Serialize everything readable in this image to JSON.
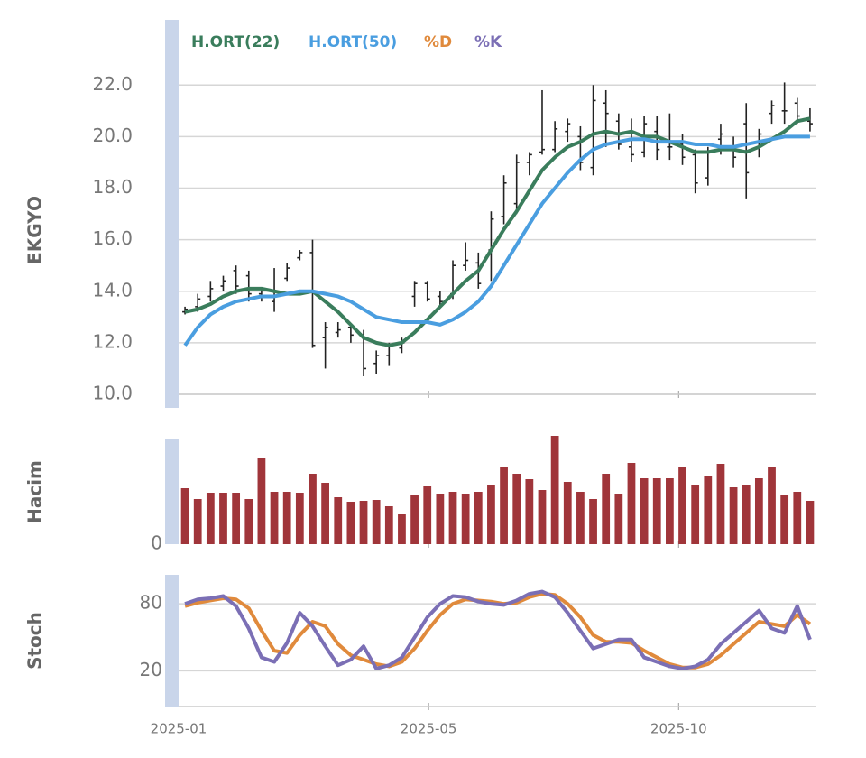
{
  "chart_data": [
    {
      "type": "ohlc",
      "ylabel": "EKGYO",
      "x": [
        0,
        1,
        2,
        3,
        4,
        5,
        6,
        7,
        8,
        9,
        10,
        11,
        12,
        13,
        14,
        15,
        16,
        17,
        18,
        19,
        20,
        21,
        22,
        23,
        24,
        25,
        26,
        27,
        28,
        29,
        30,
        31,
        32,
        33,
        34,
        35,
        36,
        37,
        38,
        39,
        40,
        41,
        42,
        43,
        44,
        45,
        46,
        47,
        48,
        49
      ],
      "open": [
        13.2,
        13.4,
        13.8,
        14.2,
        14.8,
        14.6,
        13.9,
        13.6,
        14.5,
        15.3,
        15.5,
        12.2,
        12.4,
        12.6,
        12.3,
        11.2,
        11.5,
        11.8,
        13.8,
        14.3,
        13.8,
        13.9,
        15.0,
        15.1,
        15.6,
        16.9,
        17.4,
        19.0,
        19.4,
        19.5,
        20.2,
        20.0,
        18.8,
        21.3,
        20.6,
        19.6,
        19.4,
        20.2,
        19.6,
        19.7,
        19.3,
        18.4,
        19.9,
        19.6,
        20.5,
        19.6,
        20.9,
        21.0,
        21.3,
        20.6
      ],
      "high": [
        13.4,
        13.9,
        14.4,
        14.6,
        15.0,
        14.8,
        14.1,
        14.9,
        15.1,
        15.6,
        16.0,
        12.8,
        12.8,
        12.7,
        12.5,
        11.7,
        12.0,
        12.2,
        14.4,
        14.4,
        14.0,
        15.2,
        15.9,
        15.5,
        17.1,
        18.5,
        19.3,
        19.4,
        21.8,
        20.6,
        20.7,
        20.4,
        22.0,
        21.8,
        20.9,
        20.7,
        20.8,
        20.8,
        20.9,
        20.1,
        19.5,
        19.6,
        20.5,
        20.0,
        21.3,
        20.3,
        21.4,
        22.1,
        21.5,
        21.1
      ],
      "low": [
        13.1,
        13.2,
        13.6,
        14.0,
        13.9,
        13.6,
        13.6,
        13.2,
        14.4,
        15.2,
        11.8,
        11.0,
        12.2,
        12.0,
        10.7,
        10.8,
        11.1,
        11.6,
        13.4,
        13.6,
        13.4,
        13.7,
        14.8,
        14.1,
        14.4,
        16.6,
        17.0,
        18.5,
        19.3,
        19.4,
        19.8,
        18.7,
        18.5,
        19.6,
        19.5,
        19.0,
        19.2,
        19.1,
        19.1,
        18.9,
        17.8,
        18.1,
        19.3,
        18.8,
        17.6,
        19.2,
        20.5,
        20.5,
        20.5,
        20.2
      ],
      "close": [
        13.3,
        13.7,
        14.1,
        14.4,
        14.2,
        13.9,
        13.8,
        14.0,
        14.9,
        15.5,
        11.9,
        12.6,
        12.5,
        12.3,
        11.0,
        11.5,
        11.9,
        12.0,
        14.3,
        13.7,
        13.6,
        15.0,
        15.2,
        14.3,
        16.8,
        18.2,
        19.0,
        19.3,
        19.5,
        20.3,
        20.5,
        19.0,
        21.4,
        20.9,
        19.7,
        19.3,
        20.5,
        19.5,
        19.6,
        19.2,
        18.2,
        19.4,
        20.1,
        19.2,
        18.6,
        20.1,
        21.2,
        21.0,
        20.8,
        20.5
      ],
      "bar_color": "#222222",
      "series": [
        {
          "name": "H.ORT(22)",
          "color": "#3a7d5c",
          "values": [
            13.2,
            13.3,
            13.5,
            13.8,
            14.0,
            14.1,
            14.1,
            14.0,
            13.9,
            13.9,
            14.0,
            13.6,
            13.2,
            12.7,
            12.2,
            12.0,
            11.9,
            12.0,
            12.4,
            12.9,
            13.4,
            13.9,
            14.4,
            14.8,
            15.6,
            16.4,
            17.1,
            17.9,
            18.7,
            19.2,
            19.6,
            19.8,
            20.1,
            20.2,
            20.1,
            20.2,
            20.0,
            20.0,
            19.8,
            19.6,
            19.4,
            19.4,
            19.5,
            19.5,
            19.4,
            19.6,
            19.9,
            20.2,
            20.6,
            20.7
          ]
        },
        {
          "name": "H.ORT(50)",
          "color": "#4a9ee0",
          "values": [
            11.9,
            12.6,
            13.1,
            13.4,
            13.6,
            13.7,
            13.8,
            13.8,
            13.9,
            14.0,
            14.0,
            13.9,
            13.8,
            13.6,
            13.3,
            13.0,
            12.9,
            12.8,
            12.8,
            12.8,
            12.7,
            12.9,
            13.2,
            13.6,
            14.2,
            15.0,
            15.8,
            16.6,
            17.4,
            18.0,
            18.6,
            19.1,
            19.5,
            19.7,
            19.8,
            19.9,
            19.9,
            19.8,
            19.8,
            19.8,
            19.7,
            19.7,
            19.6,
            19.6,
            19.7,
            19.8,
            19.9,
            20.0,
            20.0,
            20.0
          ]
        }
      ],
      "xlim": [
        -0.5,
        49.5
      ],
      "ylim": [
        10,
        24.6
      ],
      "yticks": [
        {
          "value": 10,
          "label": "10.0"
        },
        {
          "value": 12,
          "label": "12.0"
        },
        {
          "value": 14,
          "label": "14.0"
        },
        {
          "value": 16,
          "label": "16.0"
        },
        {
          "value": 18,
          "label": "18.0"
        },
        {
          "value": 20,
          "label": "20.0"
        },
        {
          "value": 22,
          "label": "22.0"
        }
      ],
      "grid": true
    },
    {
      "type": "bar",
      "ylabel": "Hacim",
      "color": "#a0353a",
      "values": [
        62,
        50,
        57,
        57,
        57,
        50,
        95,
        58,
        58,
        57,
        78,
        68,
        52,
        47,
        48,
        49,
        42,
        33,
        55,
        64,
        56,
        58,
        56,
        58,
        66,
        85,
        78,
        72,
        60,
        120,
        69,
        58,
        50,
        78,
        56,
        90,
        73,
        73,
        73,
        86,
        66,
        75,
        89,
        63,
        66,
        73,
        86,
        54,
        58,
        48
      ],
      "xlim": [
        -0.5,
        49.5
      ],
      "ylim": [
        0,
        120
      ],
      "yticks": [
        0
      ],
      "grid": false
    },
    {
      "type": "line",
      "ylabel": "Stoch",
      "series": [
        {
          "name": "%D",
          "color": "#e08a3c",
          "values": [
            78,
            81,
            83,
            85,
            84,
            76,
            56,
            38,
            36,
            52,
            64,
            60,
            44,
            34,
            30,
            26,
            24,
            28,
            40,
            56,
            70,
            80,
            84,
            83,
            82,
            80,
            81,
            86,
            89,
            88,
            80,
            68,
            52,
            46,
            46,
            45,
            38,
            32,
            26,
            23,
            23,
            26,
            34,
            44,
            54,
            64,
            62,
            60,
            70,
            62
          ]
        },
        {
          "name": "%K",
          "color": "#7b6fb5",
          "values": [
            80,
            84,
            85,
            87,
            78,
            58,
            32,
            28,
            45,
            72,
            60,
            42,
            25,
            30,
            42,
            22,
            25,
            32,
            50,
            68,
            80,
            87,
            86,
            82,
            80,
            79,
            83,
            89,
            91,
            86,
            72,
            56,
            40,
            44,
            48,
            48,
            32,
            28,
            24,
            22,
            24,
            30,
            44,
            54,
            64,
            74,
            58,
            54,
            78,
            48
          ]
        }
      ],
      "xlim": [
        -0.5,
        49.5
      ],
      "ylim": [
        -12,
        106
      ],
      "yticks": [
        20,
        80
      ],
      "xticks": [
        {
          "value": -0.5,
          "label": "2025-01"
        },
        {
          "value": 19.1,
          "label": "2025-05"
        },
        {
          "value": 38.7,
          "label": "2025-10"
        }
      ],
      "grid": true
    }
  ]
}
